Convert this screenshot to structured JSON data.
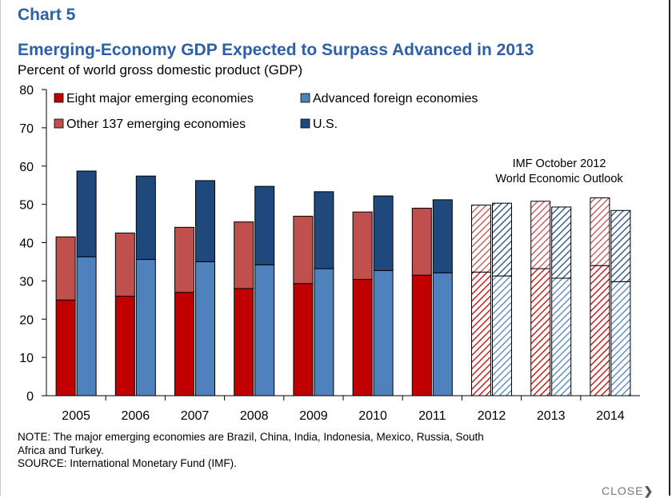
{
  "header": {
    "chart_number": "Chart 5",
    "title": "Emerging-Economy GDP Expected to Surpass Advanced  in 2013",
    "subtitle": "Percent of world gross domestic product (GDP)"
  },
  "annotation": {
    "line1": "IMF October 2012",
    "line2": "World Economic Outlook"
  },
  "footer": {
    "note_line1": "NOTE: The major emerging economies are Brazil, China, India, Indonesia, Mexico, Russia, South",
    "note_line2": "Africa and Turkey.",
    "source": "SOURCE: International Monetary Fund (IMF).",
    "close_label": "CLOSE"
  },
  "colors": {
    "eight_major": "#c00000",
    "other_emerging": "#c0504d",
    "advanced_foreign": "#4f81bd",
    "us": "#1f497d"
  },
  "chart_data": {
    "type": "bar",
    "stacked": true,
    "title": "Emerging-Economy GDP Expected to Surpass Advanced  in 2013",
    "ylabel": "Percent of world gross domestic product (GDP)",
    "ylim": [
      0,
      80
    ],
    "yticks": [
      0,
      10,
      20,
      30,
      40,
      50,
      60,
      70,
      80
    ],
    "categories": [
      "2005",
      "2006",
      "2007",
      "2008",
      "2009",
      "2010",
      "2011",
      "2012",
      "2013",
      "2014"
    ],
    "projected_from": "2012",
    "grid": false,
    "legend_position": "top-left",
    "groups": [
      {
        "name": "Emerging",
        "series": [
          {
            "name": "Eight major emerging economies",
            "color": "#c00000",
            "values": [
              25,
              26,
              27,
              28,
              29.3,
              30.4,
              31.5,
              32.3,
              33.2,
              34
            ]
          },
          {
            "name": "Other 137 emerging economies",
            "color": "#c0504d",
            "values": [
              16.5,
              16.5,
              17,
              17.4,
              17.6,
              17.6,
              17.5,
              17.5,
              17.6,
              17.7
            ]
          }
        ]
      },
      {
        "name": "Advanced",
        "series": [
          {
            "name": "Advanced foreign economies",
            "color": "#4f81bd",
            "values": [
              36.3,
              35.6,
              35,
              34.2,
              33.2,
              32.7,
              32.1,
              31.3,
              30.7,
              29.8
            ]
          },
          {
            "name": "U.S.",
            "color": "#1f497d",
            "values": [
              22.4,
              21.8,
              21.2,
              20.5,
              20.1,
              19.5,
              19.1,
              19,
              18.6,
              18.6
            ]
          }
        ]
      }
    ],
    "legend": [
      {
        "label": "Eight major emerging economies",
        "color": "#c00000"
      },
      {
        "label": "Advanced foreign economies",
        "color": "#4f81bd"
      },
      {
        "label": "Other 137 emerging economies",
        "color": "#c0504d"
      },
      {
        "label": "U.S.",
        "color": "#1f497d"
      }
    ]
  }
}
